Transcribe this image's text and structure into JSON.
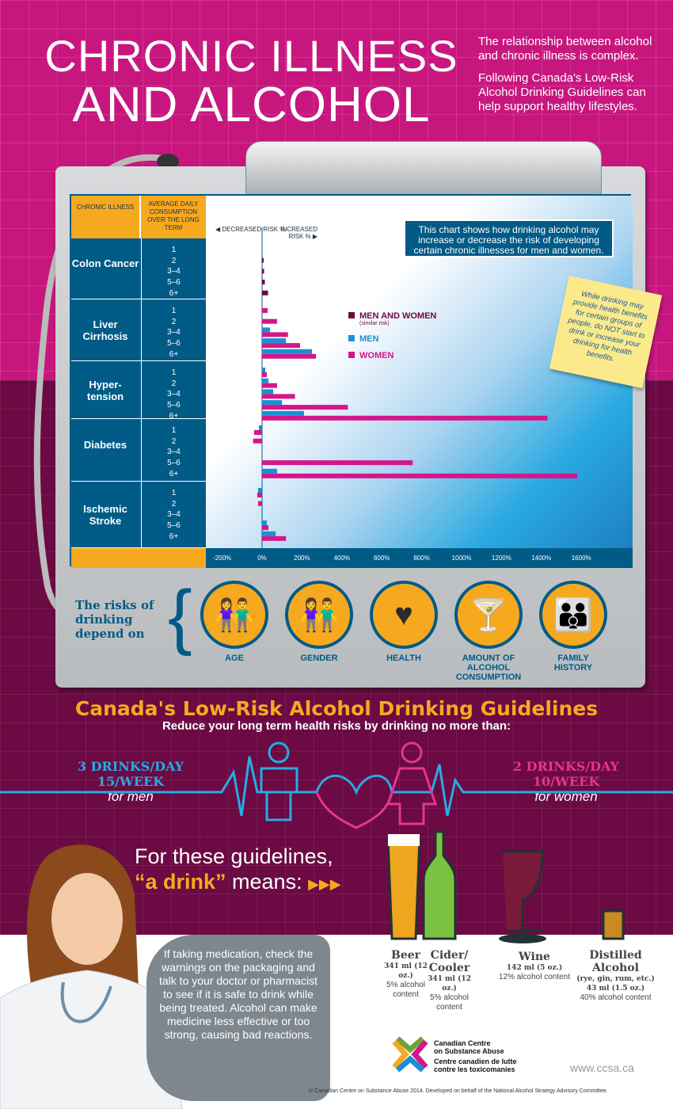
{
  "header": {
    "title_line1": "CHRONIC ILLNESS",
    "title_line2": "AND ALCOHOL",
    "intro1": "The relationship between alcohol and chronic illness is complex.",
    "intro2": "Following Canada's Low-Risk Alcohol Drinking Guidelines can help support healthy lifestyles."
  },
  "table": {
    "col1": "CHRONIC ILLNESS",
    "col2": "AVERAGE DAILY CONSUMPTION OVER THE LONG TERM",
    "decreased": "DECREASED RISK %",
    "increased": "INCREASED RISK %"
  },
  "chart_note": "This chart shows how drinking alcohol may increase or decrease the risk of developing certain chronic illnesses for men and women.",
  "sticky_note": "While drinking may provide health benefits for certain groups of people, do NOT start to drink or increase your drinking for health benefits.",
  "chart_data": {
    "type": "bar",
    "orientation": "horizontal",
    "xlim": [
      -200,
      1600
    ],
    "ticks": [
      "-200%",
      "0%",
      "200%",
      "400%",
      "600%",
      "800%",
      "1000%",
      "1200%",
      "1400%",
      "1600%"
    ],
    "levels": [
      "1",
      "2",
      "3–4",
      "5–6",
      "6+"
    ],
    "legend": [
      {
        "name": "MEN AND WOMEN",
        "sub": "(similar risk)",
        "color": "#6b0a43"
      },
      {
        "name": "MEN",
        "color": "#1b8fd2"
      },
      {
        "name": "WOMEN",
        "color": "#d4168b"
      }
    ],
    "groups": [
      {
        "illness": "Colon Cancer",
        "both": [
          0,
          8,
          10,
          14,
          30
        ]
      },
      {
        "illness": "Liver Cirrhosis",
        "men": [
          0,
          0,
          40,
          120,
          250
        ],
        "women": [
          28,
          75,
          130,
          190,
          270
        ]
      },
      {
        "illness": "Hyper-tension",
        "men": [
          16,
          32,
          56,
          100,
          210
        ],
        "women": [
          24,
          75,
          165,
          430,
          1430
        ]
      },
      {
        "illness": "Diabetes",
        "men": [
          -16,
          0,
          0,
          0,
          75
        ],
        "women": [
          -40,
          -45,
          0,
          755,
          1580
        ]
      },
      {
        "illness": "Ischemic Stroke",
        "men": [
          -20,
          0,
          0,
          24,
          68
        ],
        "women": [
          -24,
          -20,
          0,
          32,
          120
        ]
      }
    ]
  },
  "risks": {
    "title": "The risks of drinking depend on",
    "items": [
      {
        "label": "AGE",
        "icon": "people-icon"
      },
      {
        "label": "GENDER",
        "icon": "couple-icon"
      },
      {
        "label": "HEALTH",
        "icon": "heart-check-icon"
      },
      {
        "label": "AMOUNT OF ALCOHOL CONSUMPTION",
        "icon": "glasses-icon"
      },
      {
        "label": "FAMILY HISTORY",
        "icon": "family-icon"
      }
    ]
  },
  "guidelines": {
    "title": "Canada's Low-Risk Alcohol Drinking Guidelines",
    "subtitle": "Reduce your long term health risks by drinking no more than:",
    "men_day": "3 DRINKS/DAY",
    "men_week": "15/WEEK",
    "men_for": "for men",
    "women_day": "2 DRINKS/DAY",
    "women_week": "10/WEEK",
    "women_for": "for women"
  },
  "drink": {
    "line1": "For these guidelines,",
    "quote": "“a drink”",
    "line2": " means:",
    "arrows": "▶▶▶",
    "items": [
      {
        "name": "Beer",
        "size": "341 ml (12 oz.)",
        "content": "5% alcohol content"
      },
      {
        "name": "Cider/ Cooler",
        "size": "341 ml (12 oz.)",
        "content": "5% alcohol content"
      },
      {
        "name": "Wine",
        "size": "142 ml (5 oz.)",
        "content": "12% alcohol content"
      },
      {
        "name": "Distilled Alcohol",
        "extra": "(rye, gin, rum, etc.)",
        "size": "43 ml (1.5 oz.)",
        "content": "40% alcohol content"
      }
    ]
  },
  "bubble": "If taking medication, check the warnings on the packaging and talk to your doctor or pharmacist to see if it is safe to drink while being treated. Alcohol can make medicine less effective or too strong, causing bad reactions.",
  "footer": {
    "org_en1": "Canadian Centre",
    "org_en2": "on Substance Abuse",
    "org_fr1": "Centre canadien de lutte",
    "org_fr2": "contre les toxicomanies",
    "url": "www.ccsa.ca",
    "copyright": "© Canadian Centre on Substance Abuse 2014. Developed on behalf of the National Alcohol Strategy Advisory Committee."
  },
  "colors": {
    "magenta": "#c7177f",
    "plum": "#6b0a43",
    "orange": "#f6a91f",
    "blue": "#005b87",
    "men": "#1b8fd2",
    "women": "#d4168b"
  }
}
